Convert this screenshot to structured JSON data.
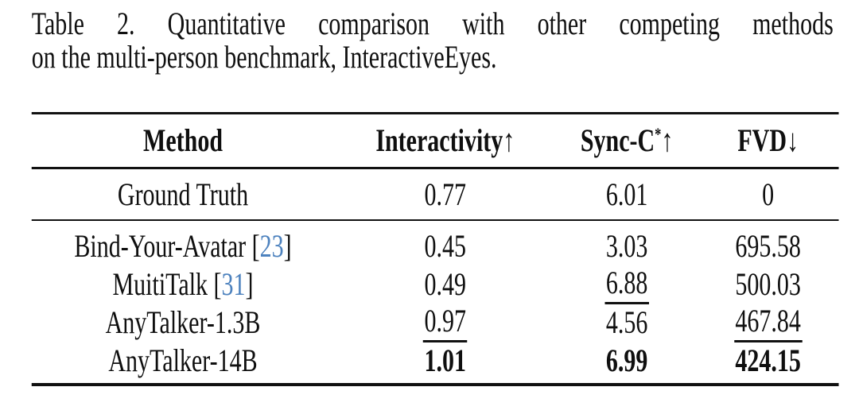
{
  "caption": {
    "line1": "Table 2. Quantitative comparison with other competing methods",
    "line2": "on the multi-person benchmark, InteractiveEyes."
  },
  "table": {
    "columns": [
      {
        "key": "method",
        "label": "Method",
        "sup": "",
        "arrow": ""
      },
      {
        "key": "interactivity",
        "label": "Interactivity",
        "sup": "",
        "arrow": "↑"
      },
      {
        "key": "sync-c",
        "label": "Sync-C",
        "sup": "*",
        "arrow": "↑"
      },
      {
        "key": "fvd",
        "label": "FVD",
        "sup": "",
        "arrow": "↓"
      }
    ],
    "sections": [
      {
        "name": "ground-truth",
        "rows": [
          {
            "cells": [
              {
                "text": "Ground Truth"
              },
              {
                "text": "0.77"
              },
              {
                "text": "6.01"
              },
              {
                "text": "0"
              }
            ]
          }
        ]
      },
      {
        "name": "methods",
        "rows": [
          {
            "cells": [
              {
                "text": "Bind-Your-Avatar",
                "citation": "23"
              },
              {
                "text": "0.45"
              },
              {
                "text": "3.03"
              },
              {
                "text": "695.58"
              }
            ]
          },
          {
            "cells": [
              {
                "text": "MuitiTalk",
                "citation": "31"
              },
              {
                "text": "0.49"
              },
              {
                "text": "6.88",
                "style": "underline"
              },
              {
                "text": "500.03"
              }
            ]
          },
          {
            "cells": [
              {
                "text": "AnyTalker-1.3B"
              },
              {
                "text": "0.97",
                "style": "underline"
              },
              {
                "text": "4.56"
              },
              {
                "text": "467.84",
                "style": "underline"
              }
            ]
          },
          {
            "cells": [
              {
                "text": "AnyTalker-14B"
              },
              {
                "text": "1.01",
                "style": "bold"
              },
              {
                "text": "6.99",
                "style": "bold"
              },
              {
                "text": "424.15",
                "style": "bold"
              }
            ]
          }
        ]
      }
    ]
  },
  "colors": {
    "citation_blue": "#4d82be",
    "text": "#0f0f0f",
    "rule": "#111111",
    "background": "#ffffff"
  }
}
